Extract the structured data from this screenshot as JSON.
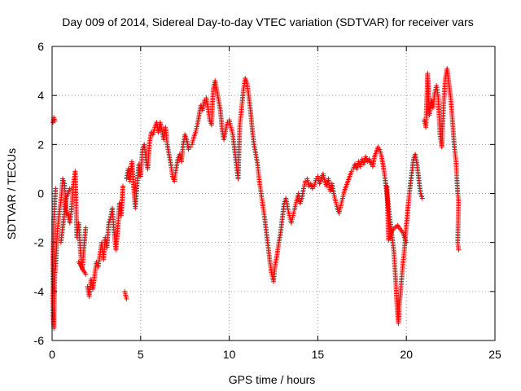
{
  "chart_data": {
    "type": "scatter",
    "title": "Day 009 of 2014, Sidereal Day-to-day VTEC variation (SDTVAR) for receiver vars",
    "xlabel": "GPS time / hours",
    "ylabel": "SDTVAR / TECUs",
    "xlim": [
      0,
      25
    ],
    "ylim": [
      -6,
      6
    ],
    "xticks": [
      0,
      5,
      10,
      15,
      20,
      25
    ],
    "yticks": [
      -6,
      -4,
      -2,
      0,
      2,
      4,
      6
    ],
    "xtick_labels": [
      "0",
      "5",
      "10",
      "15",
      "20",
      "25"
    ],
    "ytick_labels": [
      "-6",
      "-4",
      "-2",
      "0",
      "2",
      "4",
      "6"
    ],
    "grid": true,
    "marker": "+",
    "series": [
      {
        "name": "SDTVAR",
        "color": "#ff0000",
        "points": [
          [
            0.05,
            2.9
          ],
          [
            0.1,
            3.1
          ],
          [
            0.15,
            2.95
          ],
          [
            0.2,
            0.2
          ],
          [
            0.1,
            -1.0
          ],
          [
            0.05,
            -2.7
          ],
          [
            0.05,
            -3.8
          ],
          [
            0.05,
            -4.5
          ],
          [
            0.05,
            -5.0
          ],
          [
            0.1,
            -5.5
          ],
          [
            0.15,
            -3.3
          ],
          [
            0.2,
            -3.0
          ],
          [
            0.3,
            -1.5
          ],
          [
            0.4,
            -0.8
          ],
          [
            0.5,
            -0.3
          ],
          [
            0.6,
            0.6
          ],
          [
            0.7,
            0.4
          ],
          [
            0.8,
            -0.7
          ],
          [
            0.9,
            -0.9
          ],
          [
            1.0,
            -1.2
          ],
          [
            1.1,
            -0.6
          ],
          [
            1.2,
            0.3
          ],
          [
            1.3,
            0.9
          ],
          [
            1.35,
            -0.3
          ],
          [
            1.4,
            -1.8
          ],
          [
            1.5,
            -1.2
          ],
          [
            1.6,
            -2.4
          ],
          [
            1.7,
            -3.1
          ],
          [
            1.8,
            -2.2
          ],
          [
            1.9,
            -1.4
          ],
          [
            2.0,
            -3.8
          ],
          [
            2.1,
            -4.2
          ],
          [
            2.2,
            -3.5
          ],
          [
            2.3,
            -3.9
          ],
          [
            2.5,
            -2.8
          ],
          [
            2.6,
            -3.0
          ],
          [
            2.7,
            -2.5
          ],
          [
            2.8,
            -2.0
          ],
          [
            2.9,
            -2.7
          ],
          [
            3.0,
            -1.8
          ],
          [
            3.1,
            -2.2
          ],
          [
            3.2,
            -1.2
          ],
          [
            3.3,
            -1.0
          ],
          [
            3.4,
            -0.6
          ],
          [
            3.5,
            -1.6
          ],
          [
            3.6,
            -2.3
          ],
          [
            3.7,
            -1.5
          ],
          [
            3.8,
            -0.4
          ],
          [
            3.9,
            -0.9
          ],
          [
            4.0,
            0.3
          ],
          [
            4.1,
            -4.0
          ],
          [
            4.2,
            -4.3
          ],
          [
            4.2,
            0.6
          ],
          [
            4.3,
            1.0
          ],
          [
            4.4,
            0.5
          ],
          [
            4.5,
            1.3
          ],
          [
            4.6,
            0.3
          ],
          [
            4.7,
            -0.6
          ],
          [
            4.8,
            0.4
          ],
          [
            4.9,
            1.2
          ],
          [
            5.0,
            0.7
          ],
          [
            5.1,
            1.8
          ],
          [
            5.2,
            2.0
          ],
          [
            5.3,
            1.4
          ],
          [
            5.4,
            1.0
          ],
          [
            5.5,
            2.1
          ],
          [
            5.6,
            2.5
          ],
          [
            5.7,
            2.4
          ],
          [
            5.8,
            2.7
          ],
          [
            5.9,
            2.9
          ],
          [
            6.0,
            2.5
          ],
          [
            6.1,
            2.9
          ],
          [
            6.2,
            2.6
          ],
          [
            6.3,
            2.2
          ],
          [
            6.4,
            2.7
          ],
          [
            6.5,
            2.0
          ],
          [
            6.6,
            1.6
          ],
          [
            6.7,
            1.2
          ],
          [
            6.8,
            0.7
          ],
          [
            6.9,
            0.5
          ],
          [
            7.0,
            1.0
          ],
          [
            7.1,
            1.4
          ],
          [
            7.2,
            1.6
          ],
          [
            7.3,
            1.3
          ],
          [
            7.4,
            2.0
          ],
          [
            7.5,
            2.4
          ],
          [
            7.6,
            2.2
          ],
          [
            7.7,
            1.8
          ],
          [
            7.8,
            1.9
          ],
          [
            7.9,
            2.0
          ],
          [
            8.0,
            2.3
          ],
          [
            8.1,
            2.5
          ],
          [
            8.2,
            2.8
          ],
          [
            8.3,
            3.2
          ],
          [
            8.4,
            3.6
          ],
          [
            8.5,
            3.4
          ],
          [
            8.6,
            3.8
          ],
          [
            8.7,
            3.9
          ],
          [
            8.8,
            3.5
          ],
          [
            8.9,
            3.0
          ],
          [
            9.0,
            2.8
          ],
          [
            9.1,
            4.3
          ],
          [
            9.2,
            4.6
          ],
          [
            9.3,
            4.2
          ],
          [
            9.4,
            3.8
          ],
          [
            9.5,
            3.4
          ],
          [
            9.6,
            2.6
          ],
          [
            9.7,
            2.2
          ],
          [
            9.8,
            2.6
          ],
          [
            9.9,
            2.9
          ],
          [
            10.0,
            3.0
          ],
          [
            10.1,
            2.7
          ],
          [
            10.2,
            2.4
          ],
          [
            10.3,
            1.8
          ],
          [
            10.4,
            1.2
          ],
          [
            10.5,
            0.6
          ],
          [
            10.6,
            2.8
          ],
          [
            10.7,
            3.5
          ],
          [
            10.8,
            4.2
          ],
          [
            10.9,
            4.7
          ],
          [
            11.0,
            4.5
          ],
          [
            11.1,
            4.0
          ],
          [
            11.2,
            3.4
          ],
          [
            11.3,
            2.6
          ],
          [
            11.4,
            2.0
          ],
          [
            11.5,
            1.6
          ],
          [
            11.6,
            1.2
          ],
          [
            11.7,
            0.5
          ],
          [
            11.8,
            0.0
          ],
          [
            11.9,
            -0.5
          ],
          [
            12.0,
            -1.0
          ],
          [
            12.1,
            -1.6
          ],
          [
            12.2,
            -2.2
          ],
          [
            12.3,
            -2.8
          ],
          [
            12.4,
            -3.3
          ],
          [
            12.5,
            -3.6
          ],
          [
            12.6,
            -2.9
          ],
          [
            12.7,
            -2.5
          ],
          [
            12.8,
            -2.0
          ],
          [
            12.9,
            -1.6
          ],
          [
            13.0,
            -1.0
          ],
          [
            13.1,
            -0.4
          ],
          [
            13.2,
            -0.2
          ],
          [
            13.3,
            -0.6
          ],
          [
            13.4,
            -0.9
          ],
          [
            13.5,
            -1.2
          ],
          [
            13.6,
            -0.9
          ],
          [
            13.7,
            -0.6
          ],
          [
            13.8,
            -0.3
          ],
          [
            13.9,
            0.0
          ],
          [
            14.0,
            -0.4
          ],
          [
            14.1,
            -0.2
          ],
          [
            14.2,
            0.2
          ],
          [
            14.3,
            0.5
          ],
          [
            14.4,
            0.6
          ],
          [
            14.5,
            0.3
          ],
          [
            14.6,
            0.4
          ],
          [
            14.7,
            0.2
          ],
          [
            14.8,
            0.3
          ],
          [
            14.9,
            0.6
          ],
          [
            15.0,
            0.7
          ],
          [
            15.1,
            0.4
          ],
          [
            15.2,
            0.6
          ],
          [
            15.3,
            0.8
          ],
          [
            15.4,
            0.5
          ],
          [
            15.5,
            0.3
          ],
          [
            15.6,
            0.6
          ],
          [
            15.7,
            0.1
          ],
          [
            15.8,
            0.4
          ],
          [
            15.9,
            0.0
          ],
          [
            16.0,
            -0.3
          ],
          [
            16.1,
            -0.6
          ],
          [
            16.2,
            -0.8
          ],
          [
            16.3,
            -0.5
          ],
          [
            16.4,
            -0.2
          ],
          [
            16.5,
            0.1
          ],
          [
            16.6,
            0.3
          ],
          [
            16.7,
            0.5
          ],
          [
            16.8,
            0.7
          ],
          [
            16.9,
            0.9
          ],
          [
            17.0,
            1.0
          ],
          [
            17.1,
            1.2
          ],
          [
            17.2,
            1.0
          ],
          [
            17.3,
            1.3
          ],
          [
            17.4,
            1.1
          ],
          [
            17.5,
            1.4
          ],
          [
            17.6,
            1.2
          ],
          [
            17.7,
            1.5
          ],
          [
            17.8,
            1.3
          ],
          [
            17.9,
            1.4
          ],
          [
            18.0,
            1.2
          ],
          [
            18.1,
            1.1
          ],
          [
            18.2,
            1.5
          ],
          [
            18.3,
            1.7
          ],
          [
            18.4,
            1.9
          ],
          [
            18.5,
            1.8
          ],
          [
            18.6,
            1.5
          ],
          [
            18.7,
            1.1
          ],
          [
            18.8,
            0.6
          ],
          [
            18.9,
            0.0
          ],
          [
            19.0,
            -0.6
          ],
          [
            19.1,
            -1.2
          ],
          [
            19.2,
            -1.8
          ],
          [
            19.3,
            -2.4
          ],
          [
            19.35,
            -3.0
          ],
          [
            19.4,
            -3.6
          ],
          [
            19.45,
            -4.3
          ],
          [
            19.5,
            -4.9
          ],
          [
            19.55,
            -5.3
          ],
          [
            19.6,
            -4.6
          ],
          [
            19.7,
            -3.8
          ],
          [
            19.8,
            -2.9
          ],
          [
            19.9,
            -2.2
          ],
          [
            20.0,
            -1.3
          ],
          [
            20.1,
            -0.5
          ],
          [
            20.2,
            0.2
          ],
          [
            20.3,
            0.8
          ],
          [
            20.4,
            1.4
          ],
          [
            20.5,
            1.6
          ],
          [
            20.6,
            1.2
          ],
          [
            20.7,
            0.6
          ],
          [
            20.8,
            0.0
          ],
          [
            20.9,
            -0.2
          ],
          [
            21.0,
            3.0
          ],
          [
            21.1,
            2.7
          ],
          [
            21.2,
            4.9
          ],
          [
            21.3,
            3.2
          ],
          [
            21.4,
            3.8
          ],
          [
            21.5,
            3.5
          ],
          [
            21.6,
            4.1
          ],
          [
            21.7,
            4.4
          ],
          [
            21.8,
            3.9
          ],
          [
            21.9,
            2.4
          ],
          [
            22.0,
            1.9
          ],
          [
            22.1,
            3.6
          ],
          [
            22.2,
            4.7
          ],
          [
            22.3,
            5.1
          ],
          [
            22.4,
            4.5
          ],
          [
            22.5,
            3.9
          ],
          [
            22.6,
            3.0
          ],
          [
            22.7,
            2.0
          ],
          [
            22.8,
            1.3
          ],
          [
            22.85,
            0.6
          ],
          [
            22.9,
            0.0
          ],
          [
            22.95,
            -0.3
          ],
          [
            22.9,
            -2.0
          ],
          [
            22.95,
            -2.3
          ],
          [
            0.5,
            -2.0
          ],
          [
            0.8,
            -0.2
          ],
          [
            1.0,
            0.2
          ],
          [
            1.5,
            -2.8
          ],
          [
            1.9,
            -3.3
          ],
          [
            18.9,
            0.3
          ],
          [
            19.0,
            -1.9
          ],
          [
            19.2,
            -1.5
          ],
          [
            19.5,
            -1.3
          ],
          [
            19.8,
            -1.6
          ],
          [
            20.0,
            -2.0
          ]
        ]
      }
    ]
  }
}
